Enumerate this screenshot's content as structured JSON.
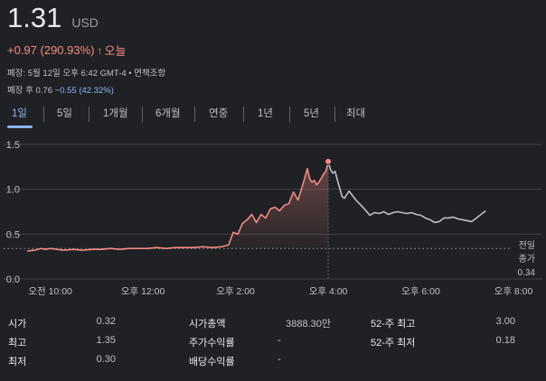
{
  "header": {
    "price": "1.31",
    "currency": "USD",
    "change": "+0.97 (290.93%)",
    "change_arrow": "↑",
    "change_period": "오늘",
    "close_info": "폐장: 5월 12일 오후 6:42 GMT-4 • 면책조항",
    "after_hours_prefix": "폐장 후 0.76",
    "after_hours_change": "−0.55 (42.32%)"
  },
  "tabs": [
    {
      "label": "1일",
      "active": true
    },
    {
      "label": "5일",
      "active": false
    },
    {
      "label": "1개월",
      "active": false
    },
    {
      "label": "6개월",
      "active": false
    },
    {
      "label": "연중",
      "active": false
    },
    {
      "label": "1년",
      "active": false
    },
    {
      "label": "5년",
      "active": false
    },
    {
      "label": "최대",
      "active": false
    }
  ],
  "chart_data": {
    "type": "line",
    "y_tick_labels": [
      "1.5",
      "1.0",
      "0.5",
      "0.0"
    ],
    "y_ticks": [
      1.5,
      1.0,
      0.5,
      0.0
    ],
    "ylim": [
      0,
      1.5
    ],
    "x_tick_labels": [
      "오전 10:00",
      "오후 12:00",
      "오후 2:00",
      "오후 4:00",
      "오후 6:00",
      "오후 8:00"
    ],
    "x_ticks": [
      10,
      12,
      14,
      16,
      18,
      20
    ],
    "xlim": [
      9.5,
      20
    ],
    "prev_close": 0.34,
    "prev_close_label": [
      "전일",
      "종가",
      "0.34"
    ],
    "colors": {
      "regular": "#f28b82",
      "after_hours": "#bdc1c6",
      "grid": "#3c4043",
      "marker": "#f28b82"
    },
    "series": [
      {
        "session": "regular",
        "x": [
          9.5,
          9.65,
          9.8,
          9.9,
          10.0,
          10.15,
          10.3,
          10.5,
          10.7,
          10.9,
          11.1,
          11.3,
          11.5,
          11.7,
          11.9,
          12.1,
          12.3,
          12.5,
          12.7,
          12.9,
          13.1,
          13.3,
          13.5,
          13.7,
          13.85,
          13.95,
          14.05,
          14.15,
          14.25,
          14.35,
          14.45,
          14.55,
          14.65,
          14.75,
          14.85,
          14.95,
          15.05,
          15.15,
          15.25,
          15.35,
          15.45,
          15.55,
          15.6,
          15.65,
          15.7,
          15.75,
          15.8,
          15.85,
          15.9,
          15.95,
          16.0
        ],
        "y": [
          0.31,
          0.32,
          0.34,
          0.33,
          0.34,
          0.33,
          0.32,
          0.33,
          0.32,
          0.33,
          0.33,
          0.34,
          0.33,
          0.34,
          0.34,
          0.34,
          0.35,
          0.34,
          0.35,
          0.35,
          0.35,
          0.36,
          0.35,
          0.36,
          0.38,
          0.52,
          0.5,
          0.62,
          0.66,
          0.72,
          0.63,
          0.72,
          0.68,
          0.78,
          0.8,
          0.76,
          0.82,
          0.84,
          0.97,
          0.88,
          1.05,
          1.23,
          1.12,
          1.08,
          1.1,
          1.05,
          1.08,
          1.12,
          1.17,
          1.2,
          1.31
        ]
      },
      {
        "session": "after_hours",
        "x": [
          16.0,
          16.05,
          16.1,
          16.15,
          16.2,
          16.3,
          16.35,
          16.45,
          16.6,
          16.75,
          16.9,
          17.0,
          17.1,
          17.2,
          17.3,
          17.4,
          17.5,
          17.6,
          17.7,
          17.8,
          17.9,
          18.0,
          18.1,
          18.2,
          18.3,
          18.4,
          18.5,
          18.6,
          18.7,
          18.8,
          18.9,
          19.0,
          19.1,
          19.2,
          19.3,
          19.4
        ],
        "y": [
          1.31,
          1.22,
          1.18,
          1.2,
          1.1,
          0.92,
          0.9,
          0.98,
          0.88,
          0.8,
          0.71,
          0.74,
          0.73,
          0.75,
          0.72,
          0.74,
          0.75,
          0.74,
          0.73,
          0.74,
          0.72,
          0.71,
          0.68,
          0.66,
          0.63,
          0.64,
          0.68,
          0.68,
          0.69,
          0.67,
          0.66,
          0.65,
          0.64,
          0.68,
          0.72,
          0.76
        ]
      }
    ]
  },
  "stats": {
    "col1": [
      {
        "label": "시가",
        "value": "0.32"
      },
      {
        "label": "최고",
        "value": "1.35"
      },
      {
        "label": "최저",
        "value": "0.30"
      }
    ],
    "col2": [
      {
        "label": "시가총액",
        "value": "3888.30만"
      },
      {
        "label": "주가수익률",
        "value": "-"
      },
      {
        "label": "배당수익률",
        "value": "-"
      }
    ],
    "col3": [
      {
        "label": "52-주 최고",
        "value": "3.00"
      },
      {
        "label": "52-주 최저",
        "value": "0.18"
      }
    ]
  }
}
